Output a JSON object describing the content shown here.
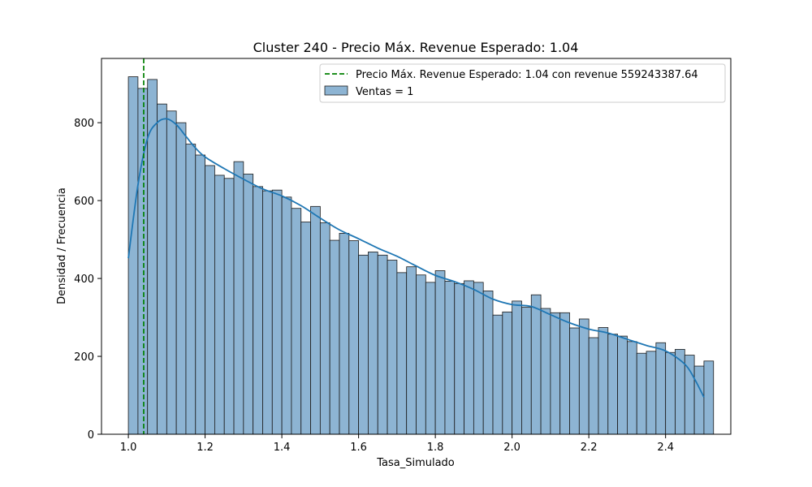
{
  "chart_data": {
    "type": "bar",
    "title": "Cluster 240 - Precio Máx. Revenue Esperado: 1.04",
    "xlabel": "Tasa_Simulado",
    "ylabel": "Densidad / Frecuencia",
    "xlim": [
      0.93,
      2.57
    ],
    "ylim": [
      0,
      965
    ],
    "xticks": [
      "1.0",
      "1.2",
      "1.4",
      "1.6",
      "1.8",
      "2.0",
      "2.2",
      "2.4"
    ],
    "yticks": [
      "0",
      "200",
      "400",
      "600",
      "800"
    ],
    "grid": false,
    "legend_position": "top-right",
    "colors": {
      "bar_fill": "#8db4d3",
      "bar_edge": "#1a1a1a",
      "kde_line": "#1f77b4",
      "vline": "#008000"
    },
    "histogram": {
      "name": "Ventas = 1",
      "bin_start": 1.0,
      "bin_width": 0.025,
      "counts": [
        918,
        888,
        911,
        848,
        830,
        800,
        745,
        717,
        690,
        665,
        657,
        700,
        668,
        636,
        625,
        627,
        609,
        580,
        545,
        585,
        543,
        498,
        516,
        497,
        460,
        468,
        460,
        447,
        415,
        430,
        409,
        390,
        420,
        393,
        387,
        394,
        390,
        368,
        306,
        314,
        342,
        326,
        358,
        323,
        312,
        312,
        273,
        296,
        248,
        274,
        257,
        252,
        238,
        208,
        213,
        235,
        210,
        218,
        203,
        175,
        188
      ]
    },
    "kde": {
      "x": [
        1.0,
        1.025,
        1.05,
        1.075,
        1.1,
        1.125,
        1.15,
        1.175,
        1.2,
        1.25,
        1.3,
        1.35,
        1.4,
        1.45,
        1.5,
        1.55,
        1.6,
        1.65,
        1.7,
        1.75,
        1.8,
        1.85,
        1.9,
        1.95,
        2.0,
        2.05,
        2.1,
        2.15,
        2.2,
        2.25,
        2.3,
        2.35,
        2.4,
        2.45,
        2.475,
        2.5
      ],
      "y": [
        452,
        640,
        760,
        800,
        810,
        795,
        765,
        735,
        712,
        682,
        655,
        630,
        612,
        587,
        555,
        525,
        502,
        478,
        457,
        432,
        408,
        392,
        372,
        347,
        333,
        328,
        307,
        286,
        270,
        260,
        244,
        228,
        214,
        180,
        143,
        95
      ]
    },
    "vline": {
      "x": 1.04,
      "label": "Precio Máx. Revenue Esperado: 1.04 con revenue 559243387.64"
    }
  }
}
